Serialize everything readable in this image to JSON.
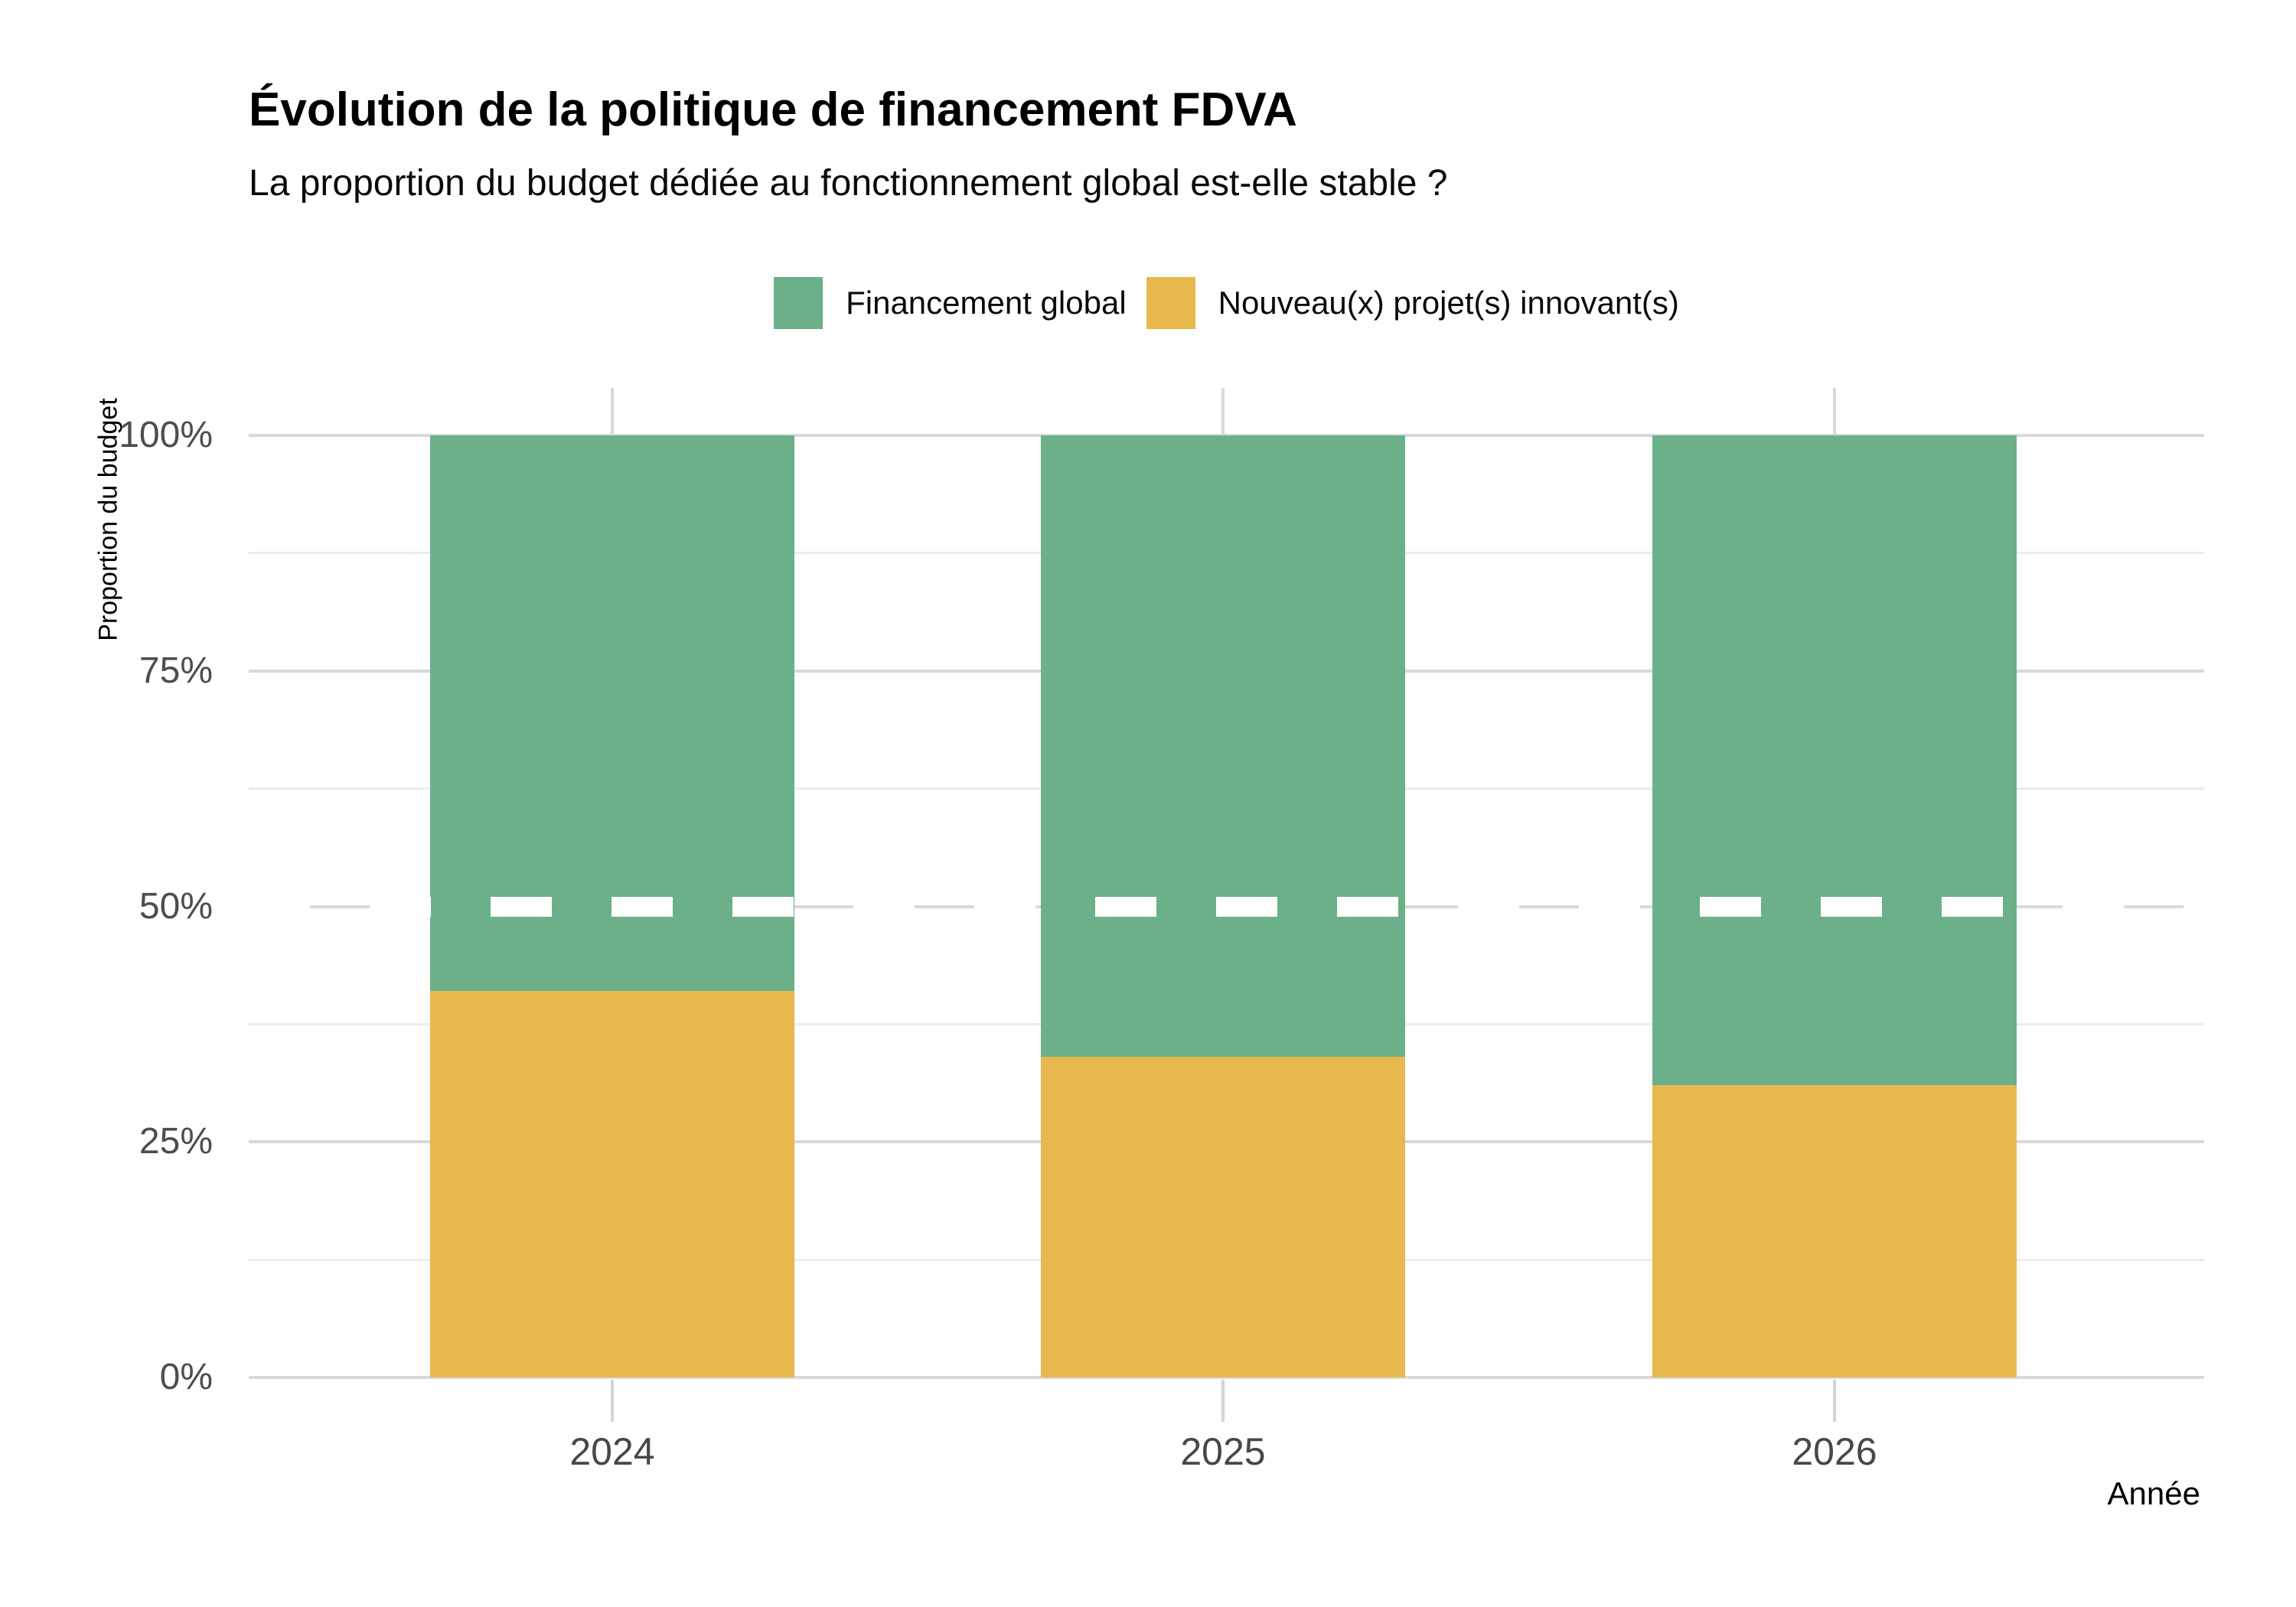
{
  "header": {
    "title": "Évolution de la politique de financement FDVA",
    "subtitle": "La proportion du budget dédiée au fonctionnement global est-elle stable ?"
  },
  "chart_data": {
    "type": "bar",
    "stacked": true,
    "title": "Évolution de la politique de financement FDVA",
    "subtitle": "La proportion du budget dédiée au fonctionnement global est-elle stable ?",
    "categories": [
      "2024",
      "2025",
      "2026"
    ],
    "series": [
      {
        "name": "Nouveau(x) projet(s) innovant(s)",
        "color": "#E6B84D",
        "values": [
          41,
          34,
          31
        ]
      },
      {
        "name": "Financement global",
        "color": "#6BB089",
        "values": [
          59,
          66,
          69
        ]
      }
    ],
    "legend": [
      {
        "label": "Financement global",
        "color": "#6BB089"
      },
      {
        "label": "Nouveau(x) projet(s) innovant(s)",
        "color": "#E6B84D"
      }
    ],
    "legend_position": "top",
    "xlabel": "Année",
    "ylabel": "Proportion du budget",
    "ylim": [
      0,
      100
    ],
    "unit": "percent",
    "y_ticks": [
      {
        "value": 0,
        "label": "0%"
      },
      {
        "value": 25,
        "label": "25%"
      },
      {
        "value": 50,
        "label": "50%"
      },
      {
        "value": 75,
        "label": "75%"
      },
      {
        "value": 100,
        "label": "100%"
      }
    ],
    "y_minor_ticks": [
      12.5,
      37.5,
      62.5,
      87.5
    ],
    "reference_line": {
      "value": 50,
      "color": "#FFFFFF",
      "style": "dashed"
    },
    "grid": true
  },
  "colors": {
    "grid_major": "#D9D9D9",
    "grid_minor": "#ECECEC",
    "axis_text": "#4D4D4D",
    "tick_mark": "#D4D4D4",
    "background": "#FFFFFF"
  }
}
